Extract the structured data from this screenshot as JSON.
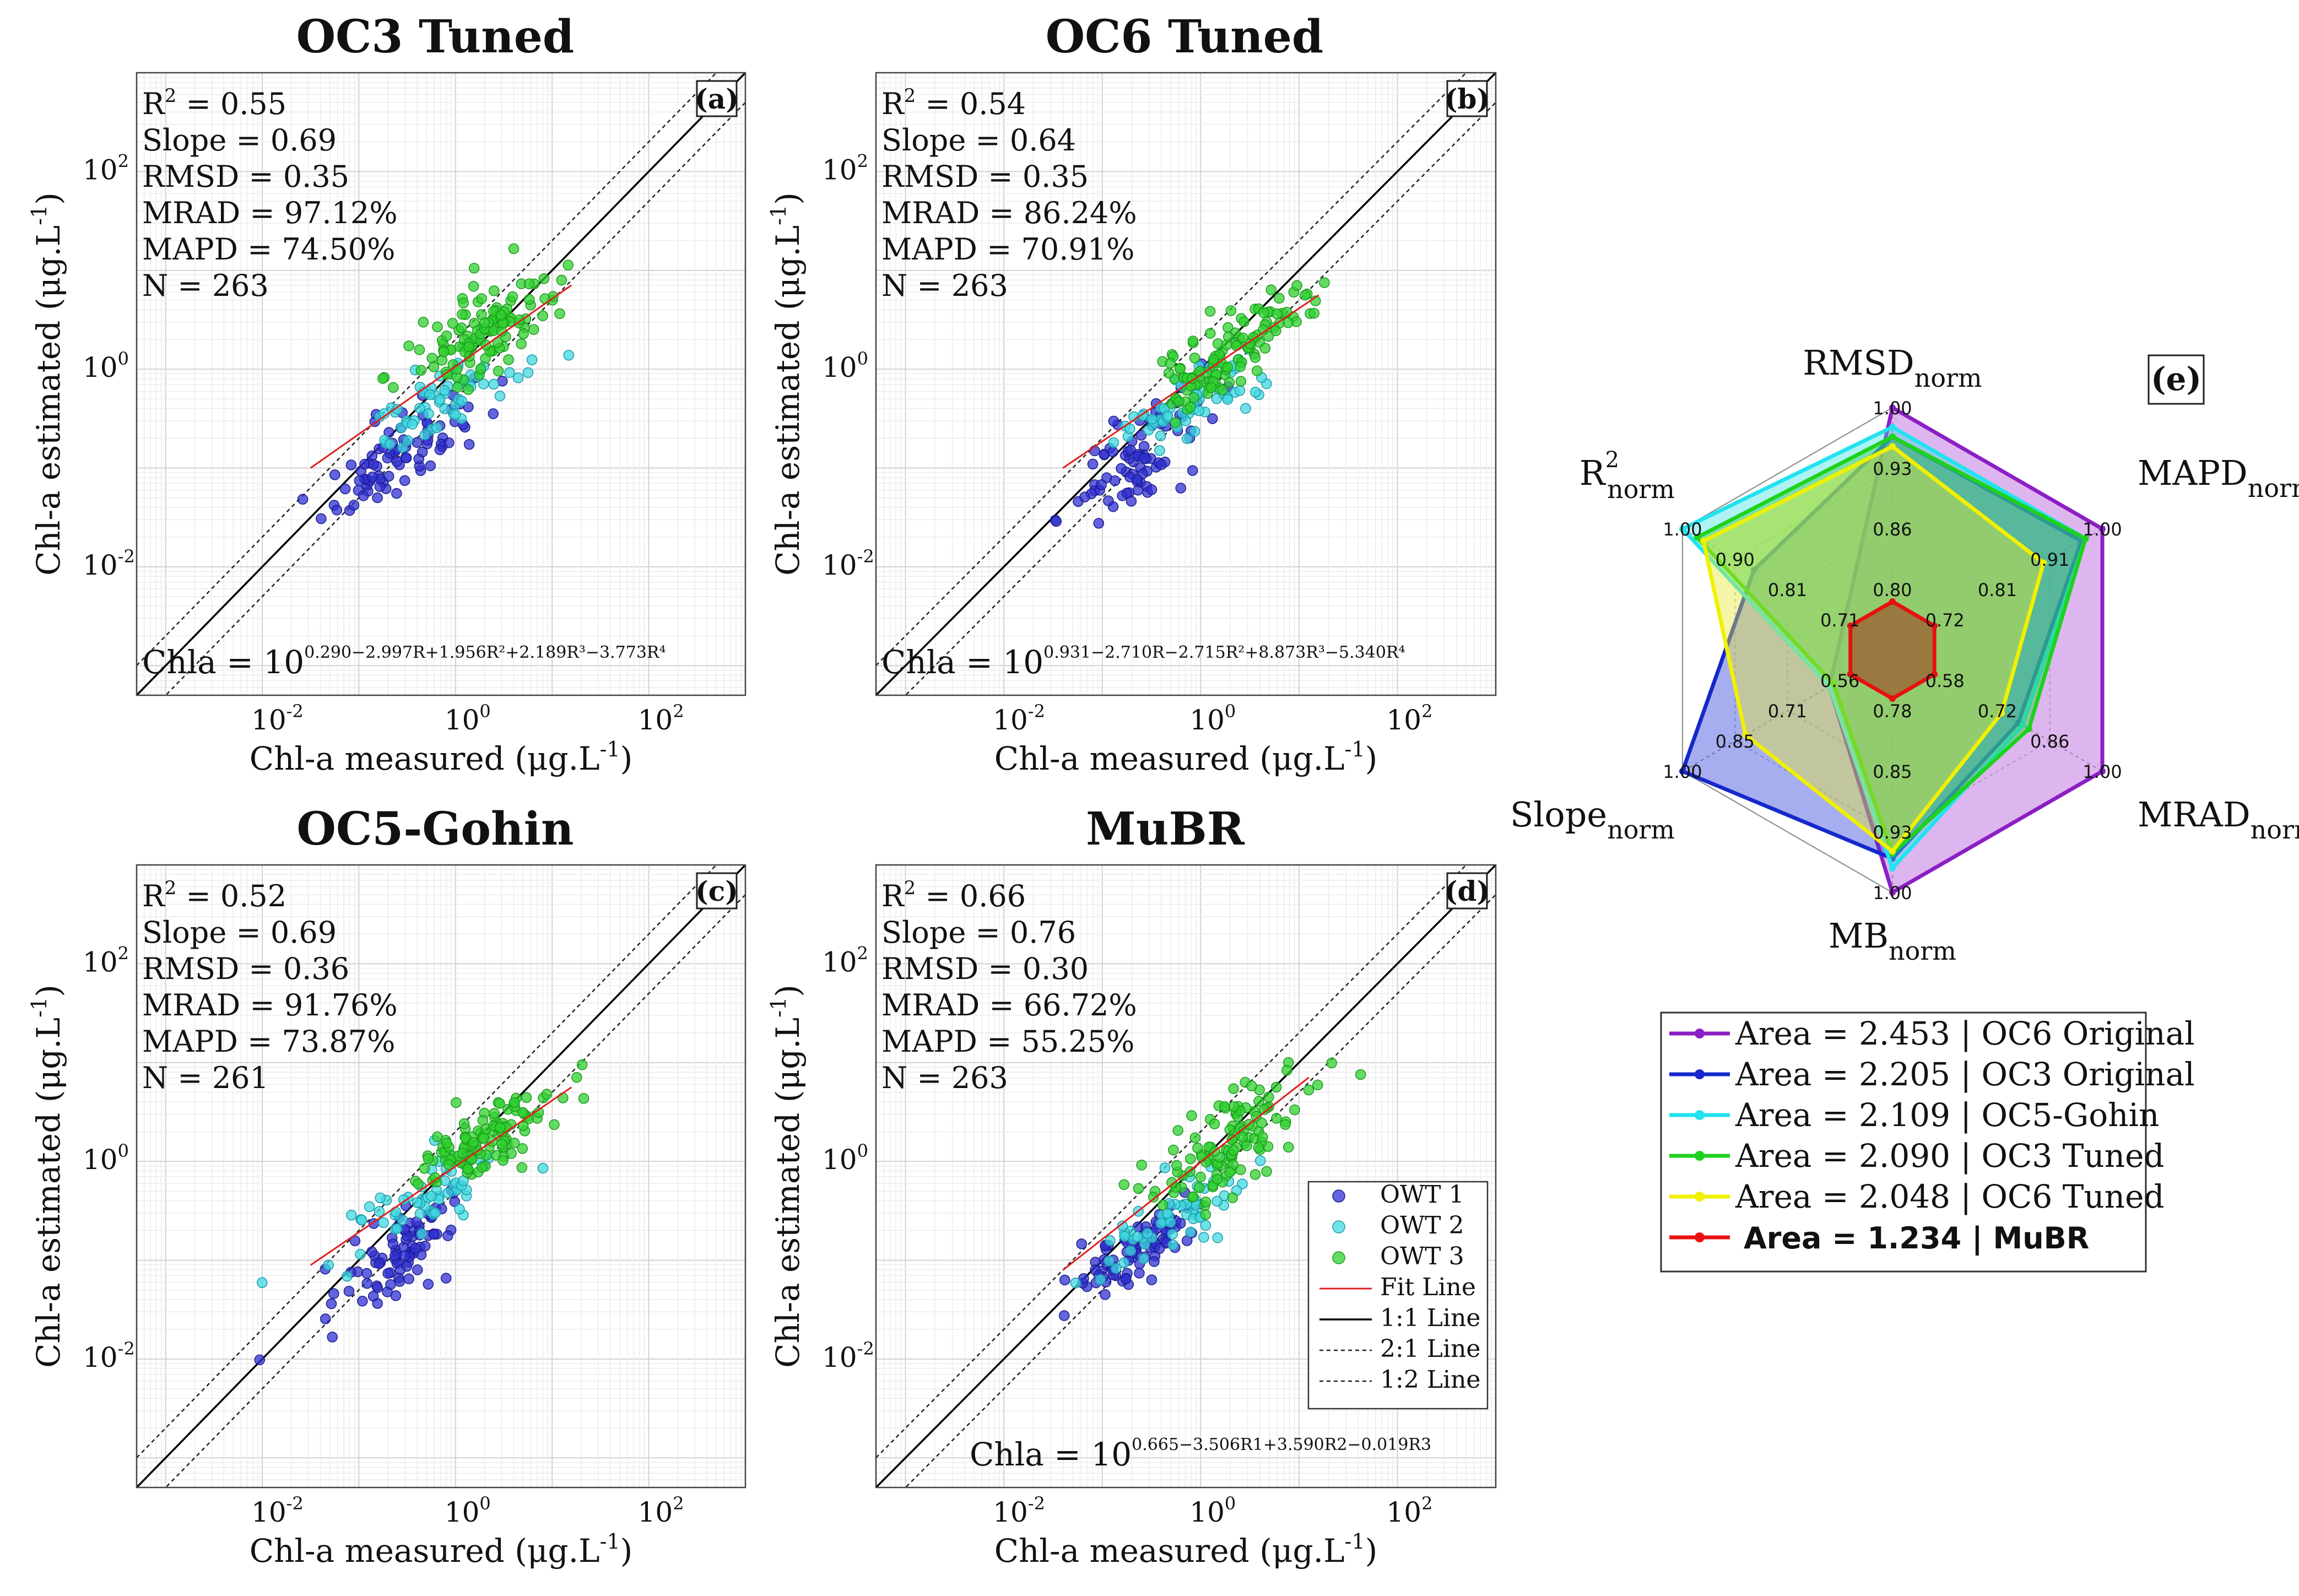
{
  "chart_data": {
    "scatter_panels": [
      {
        "id": "a",
        "label": "(a)",
        "title": "OC3 Tuned",
        "type": "scatter",
        "xlabel": "Chl-a measured (μg.L",
        "ylabel": "Chl-a estimated (μg.L",
        "unit_sup": "-1",
        "xlim_log10": [
          -3.3,
          3.0
        ],
        "ylim_log10": [
          -3.3,
          3.0
        ],
        "stats": {
          "r2": "= 0.55",
          "slope": "Slope = 0.69",
          "rmsd": "RMSD = 0.35",
          "mrad": "MRAD = 97.12%",
          "mapd": "MAPD = 74.50%",
          "n": "N = 263"
        },
        "formula_base": "Chla = 10",
        "formula_exp": "0.290−2.997R+1.956R²+2.189R³−3.773R⁴",
        "fit_line": {
          "x_log10": [
            -1.5,
            1.2
          ],
          "y_log10": [
            -1.0,
            0.85
          ]
        },
        "clusters": [
          {
            "name": "OWT 1",
            "cx": -0.6,
            "cy": -0.9,
            "sx": 0.35,
            "sy": 0.3,
            "n": 85,
            "seed": 11
          },
          {
            "name": "OWT 2",
            "cx": -0.2,
            "cy": -0.35,
            "sx": 0.45,
            "sy": 0.25,
            "n": 60,
            "seed": 12
          },
          {
            "name": "OWT 3",
            "cx": 0.25,
            "cy": 0.35,
            "sx": 0.4,
            "sy": 0.3,
            "n": 118,
            "seed": 13
          }
        ]
      },
      {
        "id": "b",
        "label": "(b)",
        "title": "OC6 Tuned",
        "type": "scatter",
        "xlabel": "Chl-a measured (μg.L",
        "ylabel": "Chl-a estimated (μg.L",
        "unit_sup": "-1",
        "xlim_log10": [
          -3.3,
          3.0
        ],
        "ylim_log10": [
          -3.3,
          3.0
        ],
        "stats": {
          "r2": "= 0.54",
          "slope": "Slope = 0.64",
          "rmsd": "RMSD = 0.35",
          "mrad": "MRAD = 86.24%",
          "mapd": "MAPD = 70.91%",
          "n": "N = 263"
        },
        "formula_base": "Chla = 10",
        "formula_exp": "0.931−2.710R−2.715R²+8.873R³−5.340R⁴",
        "fit_line": {
          "x_log10": [
            -1.4,
            1.2
          ],
          "y_log10": [
            -1.0,
            0.75
          ]
        },
        "clusters": [
          {
            "name": "OWT 1",
            "cx": -0.6,
            "cy": -0.85,
            "sx": 0.35,
            "sy": 0.35,
            "n": 85,
            "seed": 21
          },
          {
            "name": "OWT 2",
            "cx": -0.15,
            "cy": -0.4,
            "sx": 0.4,
            "sy": 0.25,
            "n": 60,
            "seed": 22
          },
          {
            "name": "OWT 3",
            "cx": 0.3,
            "cy": 0.2,
            "sx": 0.4,
            "sy": 0.3,
            "n": 118,
            "seed": 23
          }
        ]
      },
      {
        "id": "c",
        "label": "(c)",
        "title": "OC5-Gohin",
        "type": "scatter",
        "xlabel": "Chl-a measured (μg.L",
        "ylabel": "Chl-a estimated (μg.L",
        "unit_sup": "-1",
        "xlim_log10": [
          -3.3,
          3.0
        ],
        "ylim_log10": [
          -3.3,
          3.0
        ],
        "stats": {
          "r2": "= 0.52",
          "slope": "Slope = 0.69",
          "rmsd": "RMSD = 0.36",
          "mrad": "MRAD = 91.76%",
          "mapd": "MAPD = 73.87%",
          "n": "N = 261"
        },
        "formula_base": "",
        "formula_exp": "",
        "fit_line": {
          "x_log10": [
            -1.5,
            1.2
          ],
          "y_log10": [
            -1.05,
            0.75
          ]
        },
        "clusters": [
          {
            "name": "OWT 1",
            "cx": -0.6,
            "cy": -1.0,
            "sx": 0.35,
            "sy": 0.3,
            "n": 85,
            "seed": 31
          },
          {
            "name": "OWT 2",
            "cx": -0.25,
            "cy": -0.35,
            "sx": 0.4,
            "sy": 0.25,
            "n": 58,
            "seed": 32
          },
          {
            "name": "OWT 3",
            "cx": 0.3,
            "cy": 0.2,
            "sx": 0.4,
            "sy": 0.25,
            "n": 118,
            "seed": 33
          }
        ]
      },
      {
        "id": "d",
        "label": "(d)",
        "title": "MuBR",
        "type": "scatter",
        "xlabel": "Chl-a measured (μg.L",
        "ylabel": "Chl-a estimated (μg.L",
        "unit_sup": "-1",
        "xlim_log10": [
          -3.3,
          3.0
        ],
        "ylim_log10": [
          -3.3,
          3.0
        ],
        "stats": {
          "r2": "= 0.66",
          "slope": "Slope = 0.76",
          "rmsd": "RMSD = 0.30",
          "mrad": "MRAD = 66.72%",
          "mapd": "MAPD = 55.25%",
          "n": "N = 263"
        },
        "formula_base": "Chla = 10",
        "formula_exp": "0.665−3.506R1+3.590R2−0.019R3",
        "fit_line": {
          "x_log10": [
            -1.4,
            1.1
          ],
          "y_log10": [
            -1.1,
            0.85
          ]
        },
        "clusters": [
          {
            "name": "OWT 1",
            "cx": -0.6,
            "cy": -0.85,
            "sx": 0.35,
            "sy": 0.25,
            "n": 85,
            "seed": 41
          },
          {
            "name": "OWT 2",
            "cx": -0.3,
            "cy": -0.55,
            "sx": 0.4,
            "sy": 0.3,
            "n": 60,
            "seed": 42
          },
          {
            "name": "OWT 3",
            "cx": 0.25,
            "cy": 0.15,
            "sx": 0.4,
            "sy": 0.35,
            "n": 118,
            "seed": 43
          }
        ]
      }
    ],
    "shared_legend": [
      "OWT 1",
      "OWT 2",
      "OWT 3",
      "Fit Line",
      "1:1 Line",
      "2:1 Line",
      "1:2 Line"
    ],
    "tick_labels": {
      "major": [
        "10",
        "10",
        "10"
      ],
      "exps": [
        "-2",
        "0",
        "2"
      ]
    },
    "radar": {
      "type": "radar",
      "label": "(e)",
      "axes": [
        {
          "base": "RMSD",
          "sub": "norm"
        },
        {
          "base": "MAPD",
          "sub": "norm"
        },
        {
          "base": "MRAD",
          "sub": "norm"
        },
        {
          "base": "MB",
          "sub": "norm"
        },
        {
          "base": "Slope",
          "sub": "norm"
        },
        {
          "base": "R",
          "sub": "norm",
          "sup": "2"
        }
      ],
      "axis_ranges": [
        [
          0.8,
          1.0
        ],
        [
          0.72,
          1.0
        ],
        [
          0.58,
          1.0
        ],
        [
          0.78,
          1.0
        ],
        [
          0.56,
          1.0
        ],
        [
          0.71,
          1.0
        ]
      ],
      "axis_tick_labels": [
        [
          "0.80",
          "0.86",
          "0.93",
          "1.00"
        ],
        [
          "0.72",
          "0.81",
          "0.91",
          "1.00"
        ],
        [
          "0.58",
          "0.72",
          "0.86",
          "1.00"
        ],
        [
          "0.78",
          "0.85",
          "0.93",
          "1.00"
        ],
        [
          "0.56",
          "0.71",
          "0.85",
          "1.00"
        ],
        [
          "0.71",
          "0.81",
          "0.90",
          "1.00"
        ]
      ],
      "series": [
        {
          "name": "Area = 2.453 | OC6 Original",
          "color": "#8b1fc4",
          "fill": "#b050d8",
          "values": [
            1.0,
            1.0,
            1.0,
            1.0,
            0.3,
            0.23
          ]
        },
        {
          "name": "Area = 2.205 | OC3 Original",
          "color": "#1528cc",
          "fill": "#2b3fd8",
          "values": [
            0.88,
            0.9,
            0.6,
            0.86,
            1.0,
            0.66
          ]
        },
        {
          "name": "Area = 2.109 | OC5-Gohin",
          "color": "#21e3f0",
          "fill": "#40e0e8",
          "values": [
            0.92,
            0.92,
            0.62,
            0.9,
            0.3,
            1.0
          ]
        },
        {
          "name": "Area = 2.090 | OC3 Tuned",
          "color": "#1ed21e",
          "fill": "#34cc34",
          "values": [
            0.88,
            0.92,
            0.65,
            0.84,
            0.28,
            0.93
          ]
        },
        {
          "name": "Area = 2.048 | OC6 Tuned",
          "color": "#f0f000",
          "fill": "#e8e830",
          "values": [
            0.84,
            0.72,
            0.52,
            0.83,
            0.7,
            0.9
          ]
        },
        {
          "name": "Area = 1.234 | MuBR",
          "color": "#e81010",
          "fill": "#9a6a38",
          "values": [
            0.2,
            0.2,
            0.2,
            0.2,
            0.2,
            0.2
          ],
          "bold": true
        }
      ]
    },
    "colors": {
      "owt1": "#3030d0",
      "owt2": "#40d8e0",
      "owt3": "#30d030",
      "fit": "#e02020",
      "diag": "#000000"
    }
  }
}
